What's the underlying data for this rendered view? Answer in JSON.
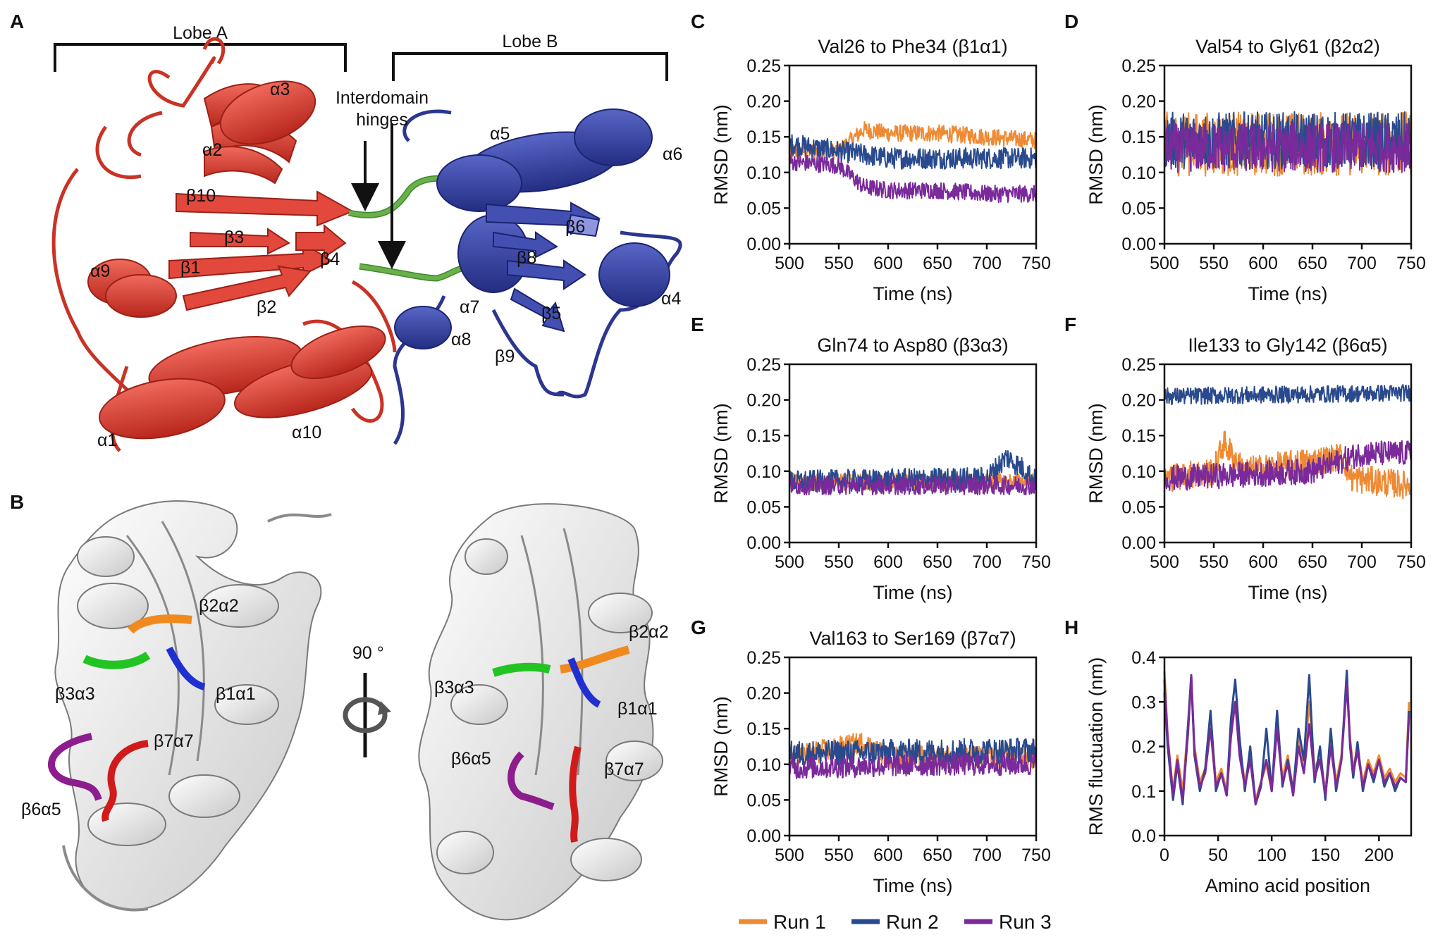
{
  "panel_letters": [
    "A",
    "B",
    "C",
    "D",
    "E",
    "F",
    "G",
    "H"
  ],
  "panel_a": {
    "lobe_a": "Lobe A",
    "lobe_b": "Lobe B",
    "hinge_line1": "Interdomain",
    "hinge_line2": "hinges",
    "sse_labels": [
      "α3",
      "α2",
      "β10",
      "β3",
      "α9",
      "β1",
      "β4",
      "β2",
      "α1",
      "α10",
      "α5",
      "α6",
      "β6",
      "β8",
      "α4",
      "α7",
      "β5",
      "α8",
      "β9"
    ]
  },
  "panel_b": {
    "rotation": "90 °",
    "left_labels": [
      "β2α2",
      "β3α3",
      "β1α1",
      "β7α7",
      "β6α5"
    ],
    "right_labels": [
      "β2α2",
      "β3α3",
      "β1α1",
      "β6α5",
      "β7α7"
    ]
  },
  "colors": {
    "lobe_a": "#de4437",
    "lobe_b": "#3946a3",
    "hinge": "#6ab04c",
    "run1": "#ee8a34",
    "run2": "#2a4a8e",
    "run3": "#7a2a9a",
    "loop_b1a1": "#1f2fd1",
    "loop_b2a2": "#f08a1f",
    "loop_b3a3": "#22c422",
    "loop_b6a5": "#8d1d8d",
    "loop_b7a7": "#d11a1a"
  },
  "legend": [
    "Run 1",
    "Run 2",
    "Run 3"
  ],
  "chart_data": [
    {
      "panel": "C",
      "type": "line",
      "title": "Val26 to Phe34 (β1α1)",
      "xlabel": "Time (ns)",
      "ylabel": "RMSD (nm)",
      "xlim": [
        500,
        750
      ],
      "ylim": [
        0,
        0.25
      ],
      "xticks": [
        "500",
        "550",
        "600",
        "650",
        "700",
        "750"
      ],
      "yticks": [
        "0.00",
        "0.05",
        "0.10",
        "0.15",
        "0.20",
        "0.25"
      ],
      "series": [
        {
          "name": "Run 1",
          "x": [
            500,
            550,
            575,
            600,
            650,
            700,
            750
          ],
          "y": [
            0.13,
            0.13,
            0.16,
            0.155,
            0.155,
            0.15,
            0.145
          ],
          "noise": 0.012
        },
        {
          "name": "Run 2",
          "x": [
            500,
            550,
            600,
            650,
            700,
            750
          ],
          "y": [
            0.14,
            0.13,
            0.12,
            0.12,
            0.12,
            0.12
          ],
          "noise": 0.015
        },
        {
          "name": "Run 3",
          "x": [
            500,
            550,
            575,
            600,
            650,
            700,
            750
          ],
          "y": [
            0.115,
            0.11,
            0.08,
            0.075,
            0.075,
            0.07,
            0.07
          ],
          "noise": 0.012
        }
      ]
    },
    {
      "panel": "D",
      "type": "line",
      "title": "Val54 to Gly61 (β2α2)",
      "xlabel": "Time (ns)",
      "ylabel": "RMSD (nm)",
      "xlim": [
        500,
        750
      ],
      "ylim": [
        0,
        0.25
      ],
      "xticks": [
        "500",
        "550",
        "600",
        "650",
        "700",
        "750"
      ],
      "yticks": [
        "0.00",
        "0.05",
        "0.10",
        "0.15",
        "0.20",
        "0.25"
      ],
      "series": [
        {
          "name": "Run 1",
          "x": [
            500,
            750
          ],
          "y": [
            0.14,
            0.14
          ],
          "noise": 0.045
        },
        {
          "name": "Run 2",
          "x": [
            500,
            750
          ],
          "y": [
            0.145,
            0.145
          ],
          "noise": 0.04
        },
        {
          "name": "Run 3",
          "x": [
            500,
            750
          ],
          "y": [
            0.135,
            0.135
          ],
          "noise": 0.035
        }
      ]
    },
    {
      "panel": "E",
      "type": "line",
      "title": "Gln74 to Asp80 (β3α3)",
      "xlabel": "Time (ns)",
      "ylabel": "RMSD (nm)",
      "xlim": [
        500,
        750
      ],
      "ylim": [
        0,
        0.25
      ],
      "xticks": [
        "500",
        "550",
        "600",
        "650",
        "700",
        "750"
      ],
      "yticks": [
        "0.00",
        "0.05",
        "0.10",
        "0.15",
        "0.20",
        "0.25"
      ],
      "series": [
        {
          "name": "Run 1",
          "x": [
            500,
            750
          ],
          "y": [
            0.085,
            0.085
          ],
          "noise": 0.012
        },
        {
          "name": "Run 2",
          "x": [
            500,
            700,
            720,
            740,
            750
          ],
          "y": [
            0.085,
            0.09,
            0.12,
            0.1,
            0.085
          ],
          "noise": 0.016
        },
        {
          "name": "Run 3",
          "x": [
            500,
            750
          ],
          "y": [
            0.08,
            0.08
          ],
          "noise": 0.013
        }
      ]
    },
    {
      "panel": "F",
      "type": "line",
      "title": "Ile133 to Gly142 (β6α5)",
      "xlabel": "Time (ns)",
      "ylabel": "RMSD (nm)",
      "xlim": [
        500,
        750
      ],
      "ylim": [
        0,
        0.25
      ],
      "xticks": [
        "500",
        "550",
        "600",
        "650",
        "700",
        "750"
      ],
      "yticks": [
        "0.00",
        "0.05",
        "0.10",
        "0.15",
        "0.20",
        "0.25"
      ],
      "series": [
        {
          "name": "Run 1",
          "x": [
            500,
            550,
            560,
            580,
            680,
            690,
            750
          ],
          "y": [
            0.09,
            0.1,
            0.14,
            0.1,
            0.12,
            0.09,
            0.08
          ],
          "noise": 0.02
        },
        {
          "name": "Run 2",
          "x": [
            500,
            750
          ],
          "y": [
            0.205,
            0.21
          ],
          "noise": 0.012
        },
        {
          "name": "Run 3",
          "x": [
            500,
            650,
            700,
            750
          ],
          "y": [
            0.09,
            0.1,
            0.125,
            0.125
          ],
          "noise": 0.018
        }
      ]
    },
    {
      "panel": "G",
      "type": "line",
      "title": "Val163 to Ser169 (β7α7)",
      "xlabel": "Time (ns)",
      "ylabel": "RMSD (nm)",
      "xlim": [
        500,
        750
      ],
      "ylim": [
        0,
        0.25
      ],
      "xticks": [
        "500",
        "550",
        "600",
        "650",
        "700",
        "750"
      ],
      "yticks": [
        "0.00",
        "0.05",
        "0.10",
        "0.15",
        "0.20",
        "0.25"
      ],
      "series": [
        {
          "name": "Run 1",
          "x": [
            500,
            575,
            600,
            750
          ],
          "y": [
            0.11,
            0.13,
            0.11,
            0.11
          ],
          "noise": 0.016
        },
        {
          "name": "Run 2",
          "x": [
            500,
            750
          ],
          "y": [
            0.115,
            0.12
          ],
          "noise": 0.018
        },
        {
          "name": "Run 3",
          "x": [
            500,
            650,
            750
          ],
          "y": [
            0.095,
            0.1,
            0.1
          ],
          "noise": 0.016
        }
      ]
    },
    {
      "panel": "H",
      "type": "line",
      "title": "",
      "xlabel": "Amino acid position",
      "ylabel": "RMS fluctuation (nm)",
      "xlim": [
        0,
        230
      ],
      "ylim": [
        0,
        0.4
      ],
      "xticks": [
        "0",
        "50",
        "100",
        "150",
        "200"
      ],
      "yticks": [
        "0.0",
        "0.1",
        "0.2",
        "0.3",
        "0.4"
      ],
      "series": [
        {
          "name": "Run 1",
          "x": [
            0,
            3,
            8,
            12,
            17,
            22,
            25,
            28,
            33,
            38,
            43,
            48,
            53,
            58,
            62,
            66,
            70,
            75,
            80,
            85,
            90,
            95,
            100,
            105,
            110,
            115,
            120,
            125,
            130,
            135,
            140,
            145,
            150,
            155,
            160,
            165,
            170,
            173,
            176,
            180,
            185,
            190,
            195,
            200,
            205,
            210,
            215,
            220,
            225,
            228
          ],
          "y": [
            0.37,
            0.22,
            0.1,
            0.18,
            0.1,
            0.25,
            0.34,
            0.2,
            0.12,
            0.15,
            0.27,
            0.12,
            0.15,
            0.1,
            0.25,
            0.3,
            0.2,
            0.12,
            0.18,
            0.08,
            0.12,
            0.16,
            0.1,
            0.25,
            0.13,
            0.18,
            0.1,
            0.22,
            0.15,
            0.3,
            0.15,
            0.18,
            0.1,
            0.22,
            0.12,
            0.18,
            0.35,
            0.22,
            0.15,
            0.2,
            0.12,
            0.17,
            0.14,
            0.18,
            0.13,
            0.15,
            0.12,
            0.14,
            0.13,
            0.3
          ]
        },
        {
          "name": "Run 2",
          "x": [
            0,
            3,
            8,
            12,
            17,
            22,
            25,
            28,
            33,
            38,
            43,
            48,
            53,
            58,
            62,
            66,
            70,
            75,
            80,
            85,
            90,
            95,
            100,
            105,
            110,
            115,
            120,
            125,
            130,
            135,
            140,
            145,
            150,
            155,
            160,
            165,
            170,
            173,
            176,
            180,
            185,
            190,
            195,
            200,
            205,
            210,
            215,
            220,
            225,
            228
          ],
          "y": [
            0.32,
            0.2,
            0.08,
            0.16,
            0.07,
            0.25,
            0.36,
            0.18,
            0.1,
            0.15,
            0.28,
            0.1,
            0.14,
            0.09,
            0.26,
            0.35,
            0.22,
            0.1,
            0.2,
            0.07,
            0.11,
            0.24,
            0.1,
            0.28,
            0.11,
            0.17,
            0.1,
            0.24,
            0.17,
            0.36,
            0.12,
            0.2,
            0.08,
            0.24,
            0.1,
            0.17,
            0.37,
            0.2,
            0.13,
            0.21,
            0.1,
            0.16,
            0.12,
            0.17,
            0.11,
            0.14,
            0.1,
            0.13,
            0.12,
            0.28
          ]
        },
        {
          "name": "Run 3",
          "x": [
            0,
            3,
            8,
            12,
            17,
            22,
            25,
            28,
            33,
            38,
            43,
            48,
            53,
            58,
            62,
            66,
            70,
            75,
            80,
            85,
            90,
            95,
            100,
            105,
            110,
            115,
            120,
            125,
            130,
            135,
            140,
            145,
            150,
            155,
            160,
            165,
            170,
            173,
            176,
            180,
            185,
            190,
            195,
            200,
            205,
            210,
            215,
            220,
            225,
            228
          ],
          "y": [
            0.35,
            0.22,
            0.09,
            0.17,
            0.08,
            0.23,
            0.36,
            0.19,
            0.11,
            0.14,
            0.24,
            0.11,
            0.14,
            0.09,
            0.22,
            0.3,
            0.18,
            0.11,
            0.17,
            0.07,
            0.12,
            0.17,
            0.1,
            0.24,
            0.12,
            0.16,
            0.09,
            0.2,
            0.14,
            0.25,
            0.13,
            0.17,
            0.09,
            0.2,
            0.11,
            0.17,
            0.34,
            0.21,
            0.14,
            0.19,
            0.11,
            0.16,
            0.13,
            0.17,
            0.12,
            0.14,
            0.11,
            0.13,
            0.12,
            0.27
          ]
        }
      ]
    }
  ]
}
